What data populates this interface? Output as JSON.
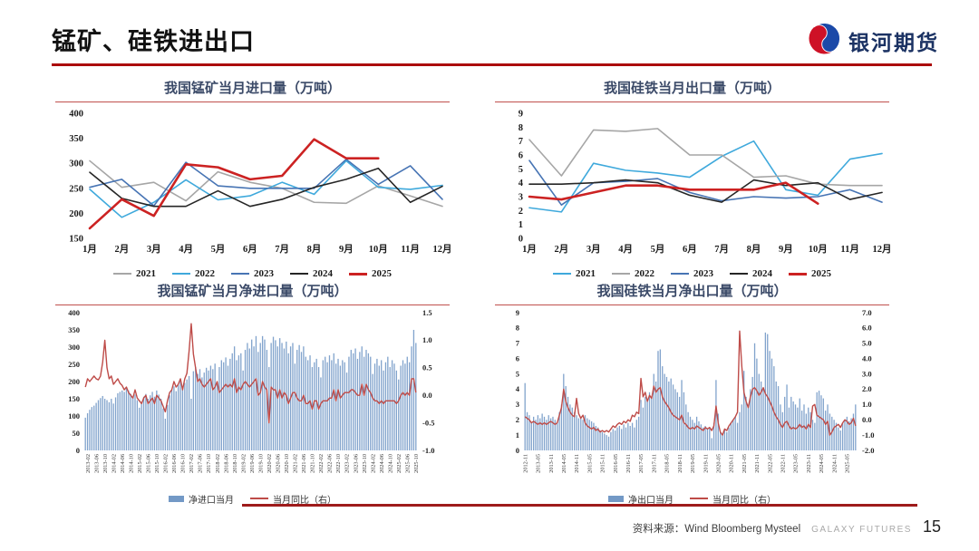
{
  "header": {
    "title": "锰矿、硅铁进出口",
    "logo_text": "银河期货"
  },
  "footer": {
    "source": "资料来源：Wind Bloomberg Mysteel",
    "brand": "GALAXY FUTURES",
    "page": "15"
  },
  "colors": {
    "accent_dark_red": "#AB0A0A",
    "panel_rule": "#C0504D",
    "footer_rule": "#9E1B1B",
    "logo_blue": "#1B49A8",
    "logo_red": "#CE1126"
  },
  "chart_data": [
    {
      "type": "line",
      "title": "我国锰矿当月进口量（万吨）",
      "categories": [
        "1月",
        "2月",
        "3月",
        "4月",
        "5月",
        "6月",
        "7月",
        "8月",
        "9月",
        "10月",
        "11月",
        "12月"
      ],
      "ylim": [
        150,
        400
      ],
      "yticks": [
        150,
        200,
        250,
        300,
        350,
        400
      ],
      "grid": false,
      "legend_position": "bottom",
      "series": [
        {
          "name": "2021",
          "color": "#A6A6A6",
          "width": 1.6,
          "values": [
            305,
            252,
            262,
            225,
            283,
            262,
            250,
            222,
            220,
            255,
            235,
            214
          ]
        },
        {
          "name": "2022",
          "color": "#3FA9DC",
          "width": 1.6,
          "values": [
            248,
            192,
            222,
            267,
            227,
            235,
            262,
            238,
            305,
            252,
            248,
            256
          ]
        },
        {
          "name": "2023",
          "color": "#4774B4",
          "width": 1.6,
          "values": [
            252,
            268,
            215,
            302,
            255,
            250,
            250,
            250,
            308,
            258,
            295,
            228
          ]
        },
        {
          "name": "2024",
          "color": "#262626",
          "width": 1.6,
          "values": [
            282,
            230,
            214,
            214,
            245,
            214,
            228,
            252,
            268,
            290,
            222,
            254
          ]
        },
        {
          "name": "2025",
          "color": "#CC2222",
          "width": 2.6,
          "values": [
            170,
            228,
            195,
            298,
            292,
            268,
            275,
            348,
            310,
            310
          ]
        }
      ]
    },
    {
      "type": "line",
      "title": "我国硅铁当月出口量（万吨）",
      "categories": [
        "1月",
        "2月",
        "3月",
        "4月",
        "5月",
        "6月",
        "7月",
        "8月",
        "9月",
        "10月",
        "11月",
        "12月"
      ],
      "ylim": [
        0,
        9
      ],
      "yticks": [
        0,
        1,
        2,
        3,
        4,
        5,
        6,
        7,
        8,
        9
      ],
      "grid": false,
      "legend_position": "bottom",
      "series": [
        {
          "name": "2021",
          "color": "#3FA9DC",
          "width": 1.6,
          "values": [
            2.2,
            1.9,
            5.4,
            4.9,
            4.7,
            4.4,
            5.9,
            7.0,
            3.5,
            3.1,
            5.7,
            6.1
          ]
        },
        {
          "name": "2022",
          "color": "#A6A6A6",
          "width": 1.6,
          "values": [
            7.1,
            4.5,
            7.8,
            7.7,
            7.9,
            6.0,
            6.0,
            4.4,
            4.5,
            3.9,
            3.8,
            3.8
          ]
        },
        {
          "name": "2023",
          "color": "#4774B4",
          "width": 1.6,
          "values": [
            5.6,
            2.4,
            4.0,
            4.1,
            4.3,
            3.3,
            2.7,
            3.0,
            2.9,
            3.0,
            3.5,
            2.6
          ]
        },
        {
          "name": "2024",
          "color": "#262626",
          "width": 1.6,
          "values": [
            3.9,
            3.9,
            4.0,
            4.2,
            4.0,
            3.1,
            2.6,
            4.2,
            3.8,
            4.0,
            2.8,
            3.3
          ]
        },
        {
          "name": "2025",
          "color": "#CC2222",
          "width": 2.6,
          "values": [
            3.0,
            2.8,
            3.3,
            3.8,
            3.8,
            3.5,
            3.5,
            3.5,
            4.0,
            2.5
          ]
        }
      ]
    },
    {
      "type": "combo",
      "title": "我国锰矿当月净进口量（万吨）",
      "ylim_left": [
        0,
        400
      ],
      "yticks_left": [
        0,
        50,
        100,
        150,
        200,
        250,
        300,
        350,
        400
      ],
      "ylim_right": [
        -1.0,
        1.5
      ],
      "yticks_right": [
        -1.0,
        -0.5,
        0.0,
        0.5,
        1.0,
        1.5
      ],
      "right_decimals": 1,
      "xticks": [
        "2013-02",
        "2013-06",
        "2013-10",
        "2014-02",
        "2014-06",
        "2014-10",
        "2015-02",
        "2015-06",
        "2015-10",
        "2016-02",
        "2016-06",
        "2016-10",
        "2017-02",
        "2017-06",
        "2017-10",
        "2018-02",
        "2018-06",
        "2018-10",
        "2019-02",
        "2019-06",
        "2019-10",
        "2020-02",
        "2020-06",
        "2020-10",
        "2021-02",
        "2021-06",
        "2021-10",
        "2022-02",
        "2022-06",
        "2022-10",
        "2023-02",
        "2023-06",
        "2023-10",
        "2024-02",
        "2024-06",
        "2024-10",
        "2025-02",
        "2025-06",
        "2025-10"
      ],
      "xtick_start": 1,
      "xtick_step": 4,
      "bars": {
        "name": "净进口当月",
        "color": "#7399C6",
        "values": [
          95,
          108,
          118,
          126,
          130,
          138,
          146,
          152,
          158,
          150,
          146,
          140,
          150,
          136,
          154,
          166,
          170,
          174,
          170,
          180,
          174,
          164,
          156,
          162,
          146,
          124,
          140,
          156,
          164,
          150,
          160,
          170,
          156,
          174,
          162,
          150,
          122,
          92,
          132,
          160,
          176,
          186,
          172,
          190,
          200,
          182,
          196,
          206,
          216,
          150,
          230,
          242,
          222,
          236,
          212,
          226,
          240,
          232,
          246,
          236,
          252,
          192,
          242,
          262,
          256,
          270,
          246,
          266,
          282,
          302,
          262,
          276,
          282,
          232,
          292,
          312,
          296,
          322,
          302,
          332,
          286,
          312,
          332,
          322,
          292,
          242,
          312,
          330,
          320,
          302,
          326,
          312,
          296,
          316,
          282,
          302,
          312,
          252,
          292,
          306,
          286,
          302,
          272,
          262,
          276,
          242,
          256,
          266,
          242,
          212,
          262,
          272,
          256,
          276,
          262,
          282,
          252,
          266,
          246,
          262,
          256,
          226,
          272,
          292,
          282,
          296,
          266,
          286,
          302,
          272,
          292,
          282,
          272,
          222,
          252,
          266,
          246,
          262,
          232,
          256,
          272,
          242,
          262,
          252,
          232,
          206,
          246,
          262,
          252,
          272,
          256,
          302,
          350,
          312
        ]
      },
      "line": {
        "name": "当月同比（右）",
        "color": "#BE4B48",
        "values": [
          0.15,
          0.3,
          0.25,
          0.3,
          0.35,
          0.3,
          0.28,
          0.35,
          0.6,
          1,
          0.5,
          0.3,
          0.35,
          0.2,
          0.25,
          0.3,
          0.22,
          0.18,
          0.1,
          0.15,
          0.05,
          0,
          -0.05,
          0.1,
          -0.05,
          -0.1,
          -0.15,
          -0.05,
          0,
          -0.15,
          -0.1,
          -0.05,
          -0.15,
          0,
          -0.05,
          -0.1,
          -0.2,
          -0.3,
          -0.1,
          0.05,
          0.1,
          0.25,
          0.15,
          0.2,
          0.3,
          0.1,
          0.3,
          0.4,
          0.8,
          1.3,
          0.75,
          0.5,
          0.25,
          0.3,
          0.2,
          0.15,
          0.2,
          0.25,
          0.3,
          0.1,
          0.15,
          0.25,
          0.05,
          0.1,
          0.15,
          0.2,
          0.15,
          0.2,
          0.15,
          0.3,
          0.05,
          0.15,
          0.1,
          0.2,
          0.25,
          0.2,
          0.15,
          0.2,
          0.25,
          0.3,
          0,
          0.05,
          0.25,
          0.15,
          0.1,
          -0.5,
          0.15,
          0.1,
          0.1,
          -0.05,
          0.1,
          -0.05,
          0.05,
          0,
          -0.15,
          -0.05,
          0.05,
          0.05,
          -0.05,
          -0.1,
          -0.1,
          0,
          -0.15,
          -0.15,
          -0.1,
          -0.25,
          -0.1,
          -0.1,
          -0.25,
          -0.15,
          -0.1,
          -0.1,
          -0.1,
          -0.05,
          -0.05,
          0.1,
          -0.1,
          0.1,
          -0.05,
          0,
          0.05,
          0.05,
          0.05,
          0.1,
          0.1,
          0.05,
          0,
          0,
          0.2,
          0,
          0.2,
          0.1,
          0.05,
          -0.05,
          -0.1,
          -0.1,
          -0.15,
          -0.1,
          -0.15,
          -0.1,
          -0.1,
          -0.1,
          -0.1,
          -0.1,
          -0.15,
          -0.1,
          0,
          0.05,
          0,
          0.05,
          0,
          0.3,
          0.3,
          0.05
        ]
      }
    },
    {
      "type": "combo",
      "title": "我国硅铁当月净出口量（万吨）",
      "ylim_left": [
        0,
        9
      ],
      "yticks_left": [
        0,
        1,
        2,
        3,
        4,
        5,
        6,
        7,
        8,
        9
      ],
      "ylim_right": [
        -2.0,
        7.0
      ],
      "yticks_right": [
        -2.0,
        -1.0,
        0.0,
        1.0,
        2.0,
        3.0,
        4.0,
        5.0,
        6.0,
        7.0
      ],
      "right_decimals": 1,
      "xticks": [
        "2012-11",
        "2013-05",
        "2013-11",
        "2014-05",
        "2014-11",
        "2015-05",
        "2015-11",
        "2016-05",
        "2016-11",
        "2017-05",
        "2017-11",
        "2018-05",
        "2018-11",
        "2019-05",
        "2019-11",
        "2020-05",
        "2020-11",
        "2021-05",
        "2021-11",
        "2022-05",
        "2022-11",
        "2023-05",
        "2023-11",
        "2024-05",
        "2024-11",
        "2025-05"
      ],
      "xtick_start": 0,
      "xtick_step": 6,
      "bars": {
        "name": "净出口当月",
        "color": "#7399C6",
        "values": [
          4.4,
          2.5,
          2.3,
          1.8,
          2.2,
          2.0,
          2.3,
          2.1,
          2.4,
          2.2,
          2.0,
          2.3,
          2.1,
          2.2,
          2.0,
          1.8,
          2.5,
          3.0,
          5.0,
          4.2,
          3.5,
          3.0,
          2.8,
          2.5,
          2.3,
          2.1,
          2.2,
          2.0,
          2.3,
          2.1,
          2.0,
          1.9,
          1.8,
          1.6,
          1.5,
          1.3,
          1.2,
          1.1,
          1.0,
          0.9,
          1.2,
          1.4,
          1.3,
          1.5,
          1.6,
          1.4,
          1.7,
          1.5,
          1.8,
          1.6,
          1.8,
          1.5,
          2.0,
          2.2,
          3.3,
          2.8,
          3.5,
          3.2,
          3.8,
          3.5,
          5.0,
          4.5,
          6.5,
          6.6,
          5.5,
          5.0,
          4.8,
          4.5,
          4.7,
          4.3,
          4.0,
          3.8,
          3.5,
          4.6,
          3.8,
          3.0,
          2.5,
          2.2,
          2.0,
          1.8,
          2.2,
          1.9,
          1.7,
          1.5,
          1.6,
          1.4,
          1.5,
          0.8,
          1.8,
          4.6,
          2.4,
          1.2,
          1.0,
          1.4,
          1.2,
          1.5,
          1.8,
          2.0,
          2.2,
          1.8,
          2.5,
          3.0,
          5.2,
          3.5,
          3.0,
          4.0,
          4.8,
          7.0,
          6.0,
          5.0,
          4.5,
          4.0,
          7.7,
          7.6,
          6.5,
          6.0,
          5.5,
          4.5,
          4.2,
          3.0,
          2.5,
          3.5,
          4.3,
          2.8,
          3.5,
          3.2,
          3.0,
          2.8,
          3.4,
          2.6,
          3.0,
          2.4,
          2.8,
          2.5,
          2.0,
          1.8,
          3.8,
          3.9,
          3.6,
          3.4,
          2.6,
          3.0,
          2.4,
          2.2,
          2.0,
          1.8,
          1.5,
          1.3,
          1.8,
          2.0,
          2.2,
          1.9,
          2.1,
          2.4,
          3.0
        ]
      },
      "line": {
        "name": "当月同比（右）",
        "color": "#BE4B48",
        "values": [
          0.2,
          0.1,
          0,
          -0.2,
          -0.1,
          -0.2,
          -0.3,
          -0.2,
          -0.3,
          -0.2,
          -0.3,
          -0.2,
          -0.1,
          -0.2,
          -0.3,
          -0.2,
          0.3,
          0.8,
          2.0,
          1.2,
          0.8,
          0.5,
          0.3,
          0.2,
          1.4,
          0.4,
          0.1,
          0.3,
          -0.2,
          -0.4,
          -0.5,
          -0.6,
          -0.5,
          -0.7,
          -0.6,
          -0.8,
          -0.7,
          -0.8,
          -0.7,
          -0.8,
          -0.6,
          -0.4,
          -0.5,
          -0.3,
          -0.2,
          -0.3,
          -0.1,
          -0.2,
          0,
          -0.1,
          0.3,
          0.2,
          0.5,
          0.4,
          2.7,
          1.5,
          1.8,
          1.2,
          1.6,
          1.4,
          2.2,
          1.8,
          2.0,
          2.1,
          1.5,
          1.2,
          1.0,
          0.8,
          0.5,
          0.3,
          0.2,
          0.1,
          0,
          0.3,
          -0.2,
          -0.3,
          -0.5,
          -0.6,
          -0.5,
          -0.6,
          -0.4,
          -0.5,
          -0.6,
          -0.7,
          -0.5,
          -0.6,
          -0.5,
          -0.7,
          -0.4,
          0.9,
          -0.2,
          -0.8,
          -1.0,
          -0.6,
          -0.7,
          -0.4,
          -0.2,
          0,
          0.2,
          0.5,
          5.8,
          3.5,
          1.8,
          1.2,
          0.8,
          1.5,
          2.0,
          2.1,
          1.9,
          1.6,
          1.8,
          2.1,
          1.7,
          1.5,
          1.2,
          0.9,
          0.5,
          0.2,
          0,
          -0.3,
          -0.5,
          -0.2,
          -0.1,
          -0.4,
          -0.6,
          -0.5,
          -0.6,
          -0.5,
          -0.3,
          -0.5,
          -0.4,
          -0.6,
          -0.3,
          -0.5,
          0.9,
          1.0,
          0.3,
          0.2,
          0.1,
          0,
          -0.3,
          -0.1,
          -1.0,
          -0.8,
          -0.5,
          -0.4,
          -0.3,
          -0.5,
          -0.2,
          0,
          -0.1,
          -0.3,
          -0.2,
          0.1,
          -0.4
        ]
      }
    }
  ]
}
